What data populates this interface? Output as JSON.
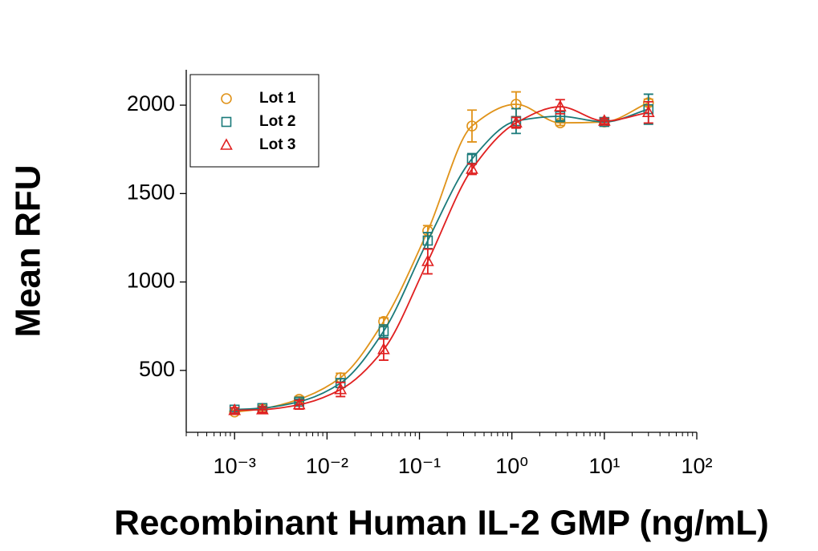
{
  "chart_data": {
    "type": "scatter",
    "x_label": "Recombinant Human IL-2 GMP (ng/mL)",
    "y_label": "Mean RFU",
    "x_scale": "log",
    "x": [
      0.001,
      0.002,
      0.005,
      0.014,
      0.041,
      0.123,
      0.37,
      1.11,
      3.33,
      10,
      30
    ],
    "xlim": [
      0.0003,
      100
    ],
    "xticks": [
      {
        "value": 0.001,
        "label": "10⁻³"
      },
      {
        "value": 0.01,
        "label": "10⁻²"
      },
      {
        "value": 0.1,
        "label": "10⁻¹"
      },
      {
        "value": 1,
        "label": "10⁰"
      },
      {
        "value": 10,
        "label": "10¹"
      },
      {
        "value": 100,
        "label": "10²"
      }
    ],
    "ylim": [
      150,
      2200
    ],
    "yticks": [
      500,
      1000,
      1500,
      2000
    ],
    "legend": "upper left",
    "series": [
      {
        "name": "Lot 1",
        "color": "#e0931a",
        "marker": "circle",
        "values": [
          265,
          283,
          337,
          459,
          777,
          1289,
          1882,
          2005,
          1900,
          1905,
          2014
        ],
        "errors": [
          10,
          10,
          15,
          25,
          20,
          30,
          90,
          70,
          15,
          10,
          20
        ]
      },
      {
        "name": "Lot 2",
        "color": "#1a7a7a",
        "marker": "square",
        "values": [
          278,
          287,
          323,
          428,
          722,
          1234,
          1696,
          1910,
          1937,
          1905,
          1977
        ],
        "errors": [
          10,
          10,
          15,
          25,
          35,
          45,
          30,
          70,
          30,
          15,
          85
        ]
      },
      {
        "name": "Lot 3",
        "color": "#e02020",
        "marker": "triangle",
        "values": [
          274,
          278,
          306,
          392,
          618,
          1116,
          1638,
          1900,
          1991,
          1910,
          1959
        ],
        "errors": [
          15,
          15,
          25,
          40,
          60,
          70,
          30,
          30,
          40,
          15,
          60
        ]
      }
    ]
  }
}
